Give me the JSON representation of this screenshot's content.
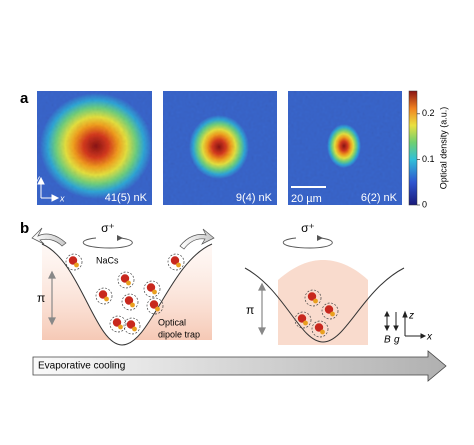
{
  "panel_a": {
    "label": "a",
    "images": [
      {
        "temperature": "41(5) nK"
      },
      {
        "temperature": "9(4) nK"
      },
      {
        "temperature": "6(2) nK"
      }
    ],
    "axis_y": "y",
    "axis_x": "x",
    "scale_bar": "20 µm",
    "colorbar": {
      "label": "Optical density (a.u.)",
      "lim": [
        0,
        0.25
      ],
      "ticks": [
        0,
        0.1,
        0.2
      ]
    }
  },
  "panel_b": {
    "label": "b",
    "sigma_left": "σ⁺",
    "sigma_right": "σ⁺",
    "molecule": "NaCs",
    "pi_left": "π",
    "pi_right": "π",
    "trap_line1": "Optical",
    "trap_line2": "dipole trap",
    "field_B": "B",
    "gravity": "g",
    "axis_z": "z",
    "axis_x": "x",
    "process": "Evaporative cooling"
  }
}
